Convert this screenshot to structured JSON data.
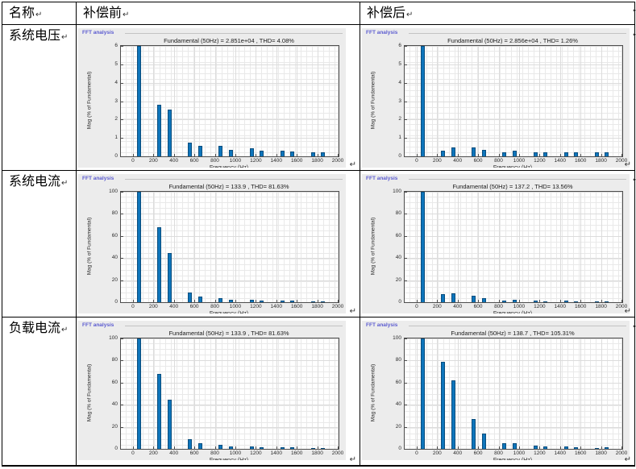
{
  "table": {
    "para_mark": "↵",
    "header": {
      "name": "名称",
      "before": "补偿前",
      "after": "补偿后"
    },
    "rows": [
      {
        "label": "系统电压"
      },
      {
        "label": "系统电流"
      },
      {
        "label": "负载电流"
      }
    ]
  },
  "figure": {
    "panel_label": "FFT analysis",
    "xlabel": "Frequency (Hz)",
    "ylabel": "Mag (% of Fundamental)",
    "colors": {
      "bar": "#0E75BB",
      "bar_edge": "#0A4E7E",
      "panel_label": "#5b5bd0",
      "figure_bg": "#ececec",
      "plot_bg": "#ffffff",
      "axis": "#4d4d4d"
    }
  },
  "chart_data": [
    {
      "type": "bar",
      "row": "系统电压",
      "col": "补偿前",
      "title": "Fundamental (50Hz) = 2.851e+04 , THD= 4.08%",
      "xlabel": "Frequency (Hz)",
      "ylabel": "Mag (% of Fundamental)",
      "x": [
        50,
        250,
        350,
        550,
        650,
        850,
        950,
        1150,
        1250,
        1450,
        1550,
        1750,
        1850
      ],
      "values": [
        100,
        2.8,
        2.55,
        0.75,
        0.55,
        0.55,
        0.33,
        0.43,
        0.32,
        0.3,
        0.28,
        0.22,
        0.24
      ],
      "xlim": [
        -125,
        2000
      ],
      "ylim": [
        0,
        6
      ],
      "xticks": [
        0,
        200,
        400,
        600,
        800,
        1000,
        1200,
        1400,
        1600,
        1800,
        2000
      ],
      "yticks": [
        0,
        1,
        2,
        3,
        4,
        5,
        6
      ],
      "grid": true,
      "legend": "none"
    },
    {
      "type": "bar",
      "row": "系统电压",
      "col": "补偿后",
      "title": "Fundamental (50Hz) = 2.856e+04 , THD= 1.26%",
      "xlabel": "Frequency (Hz)",
      "ylabel": "Mag (% of Fundamental)",
      "x": [
        50,
        250,
        350,
        550,
        650,
        850,
        950,
        1150,
        1250,
        1450,
        1550,
        1750,
        1850
      ],
      "values": [
        100,
        0.32,
        0.46,
        0.47,
        0.33,
        0.22,
        0.3,
        0.2,
        0.2,
        0.24,
        0.24,
        0.22,
        0.23
      ],
      "xlim": [
        -125,
        2000
      ],
      "ylim": [
        0,
        6
      ],
      "xticks": [
        0,
        200,
        400,
        600,
        800,
        1000,
        1200,
        1400,
        1600,
        1800,
        2000
      ],
      "yticks": [
        0,
        1,
        2,
        3,
        4,
        5,
        6
      ],
      "grid": true,
      "legend": "none"
    },
    {
      "type": "bar",
      "row": "系统电流",
      "col": "补偿前",
      "title": "Fundamental (50Hz) = 133.9 , THD= 81.63%",
      "xlabel": "Frequency (Hz)",
      "ylabel": "Mag (% of Fundamental)",
      "x": [
        50,
        250,
        350,
        550,
        650,
        850,
        950,
        1150,
        1250,
        1450,
        1550,
        1750,
        1850
      ],
      "values": [
        100,
        68,
        44.5,
        8.5,
        5,
        4,
        2.5,
        2.5,
        1.8,
        1.3,
        1.2,
        0.8,
        0.8
      ],
      "xlim": [
        -125,
        2000
      ],
      "ylim": [
        0,
        100
      ],
      "xticks": [
        0,
        200,
        400,
        600,
        800,
        1000,
        1200,
        1400,
        1600,
        1800,
        2000
      ],
      "yticks": [
        0,
        20,
        40,
        60,
        80,
        100
      ],
      "grid": true,
      "legend": "none"
    },
    {
      "type": "bar",
      "row": "系统电流",
      "col": "补偿后",
      "title": "Fundamental (50Hz) = 137.2 , THD= 13.56%",
      "xlabel": "Frequency (Hz)",
      "ylabel": "Mag (% of Fundamental)",
      "x": [
        50,
        250,
        350,
        550,
        650,
        850,
        950,
        1150,
        1250,
        1450,
        1550,
        1750,
        1850
      ],
      "values": [
        100,
        7.5,
        8.2,
        5.5,
        3.3,
        1.8,
        2.3,
        1.5,
        1,
        1.2,
        1,
        0.8,
        0.9
      ],
      "xlim": [
        -125,
        2000
      ],
      "ylim": [
        0,
        100
      ],
      "xticks": [
        0,
        200,
        400,
        600,
        800,
        1000,
        1200,
        1400,
        1600,
        1800,
        2000
      ],
      "yticks": [
        0,
        20,
        40,
        60,
        80,
        100
      ],
      "grid": true,
      "legend": "none"
    },
    {
      "type": "bar",
      "row": "负载电流",
      "col": "补偿前",
      "title": "Fundamental (50Hz) = 133.9 , THD= 81.63%",
      "xlabel": "Frequency (Hz)",
      "ylabel": "Mag (% of Fundamental)",
      "x": [
        50,
        250,
        350,
        550,
        650,
        850,
        950,
        1150,
        1250,
        1450,
        1550,
        1750,
        1850
      ],
      "values": [
        100,
        68,
        44.5,
        8.5,
        5,
        4,
        2.5,
        2.5,
        1.8,
        1.3,
        1.2,
        0.8,
        0.8
      ],
      "xlim": [
        -125,
        2000
      ],
      "ylim": [
        0,
        100
      ],
      "xticks": [
        0,
        200,
        400,
        600,
        800,
        1000,
        1200,
        1400,
        1600,
        1800,
        2000
      ],
      "yticks": [
        0,
        20,
        40,
        60,
        80,
        100
      ],
      "grid": true,
      "legend": "none"
    },
    {
      "type": "bar",
      "row": "负载电流",
      "col": "补偿后",
      "title": "Fundamental (50Hz) = 138.7 , THD= 105.31%",
      "xlabel": "Frequency (Hz)",
      "ylabel": "Mag (% of Fundamental)",
      "x": [
        50,
        250,
        350,
        550,
        650,
        850,
        950,
        1150,
        1250,
        1450,
        1550,
        1750,
        1850
      ],
      "values": [
        100,
        79,
        62,
        27,
        14,
        5,
        5.3,
        3,
        2,
        2.2,
        1.7,
        1,
        1.2
      ],
      "xlim": [
        -125,
        2000
      ],
      "ylim": [
        0,
        100
      ],
      "xticks": [
        0,
        200,
        400,
        600,
        800,
        1000,
        1200,
        1400,
        1600,
        1800,
        2000
      ],
      "yticks": [
        0,
        20,
        40,
        60,
        80,
        100
      ],
      "grid": true,
      "legend": "none"
    }
  ]
}
